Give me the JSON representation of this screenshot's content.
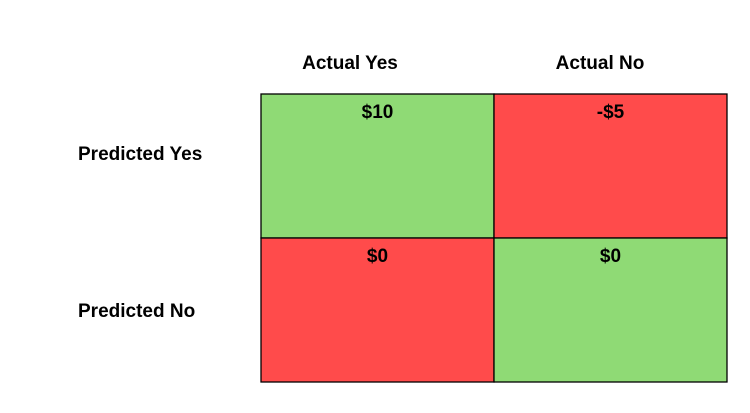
{
  "table": {
    "columns": [
      "Actual Yes",
      "Actual No"
    ],
    "rows": [
      {
        "label": "Predicted Yes",
        "cells": [
          {
            "text": "$10",
            "color": "#8fda75"
          },
          {
            "text": "-$5",
            "color": "#ff4b4b"
          }
        ]
      },
      {
        "label": "Predicted No",
        "cells": [
          {
            "text": "$0",
            "color": "#ff4b4b"
          },
          {
            "text": "$0",
            "color": "#8fda75"
          }
        ]
      }
    ]
  }
}
